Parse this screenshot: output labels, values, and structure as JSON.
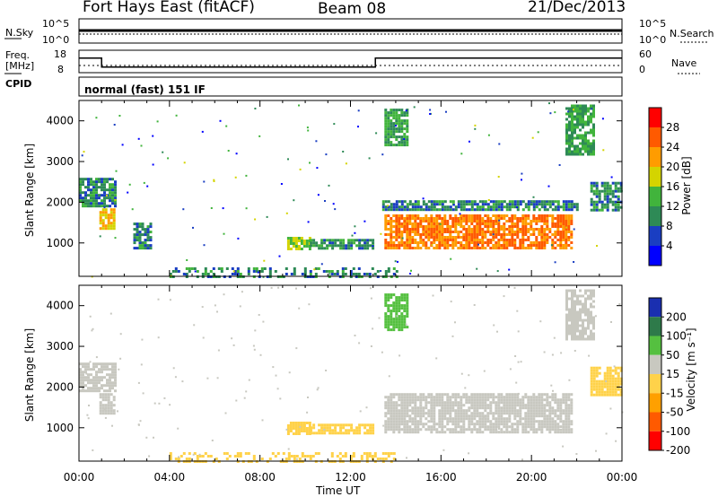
{
  "header": {
    "title": "Fort Hays East (fitACF)",
    "beam": "Beam 08",
    "date": "21/Dec/2013"
  },
  "top_panels": {
    "nsky_label": "N.Sky",
    "nsky_ticks": [
      "10^5",
      "10^0"
    ],
    "nsearch_label": "N.Search",
    "nsearch_ticks": [
      "10^5",
      "10^0"
    ],
    "freq_label": "Freq.",
    "freq_unit": "[MHz]",
    "freq_ticks": [
      "18",
      "8"
    ],
    "nave_label": "Nave",
    "nave_ticks": [
      "60",
      "0"
    ],
    "cpid_label": "CPID",
    "cpid_value": "normal (fast) 151 IF",
    "freq_profile": {
      "x_hours": [
        0,
        1.0,
        1.0,
        13.1,
        13.1,
        24
      ],
      "mhz": [
        14.5,
        14.5,
        10.5,
        10.5,
        14.5,
        14.5
      ]
    }
  },
  "chart_data": [
    {
      "type": "heatmap",
      "title": "",
      "xlabel": "Time UT",
      "ylabel": "Slant Range [km]",
      "xlim": [
        0,
        24
      ],
      "ylim": [
        180,
        4500
      ],
      "x_ticks": [
        "00:00",
        "04:00",
        "08:00",
        "12:00",
        "16:00",
        "20:00",
        "00:00"
      ],
      "y_ticks": [
        1000,
        2000,
        3000,
        4000
      ],
      "colorbar": {
        "label": "Power [dB]",
        "ticks": [
          "28",
          "24",
          "20",
          "16",
          "12",
          "8",
          "4"
        ],
        "colors": [
          "#ff0000",
          "#ff5a00",
          "#ff9c00",
          "#d4d400",
          "#41b43c",
          "#2e8a56",
          "#1a3ec2",
          "#0000ff"
        ]
      },
      "regions": [
        {
          "x": [
            0,
            1.6
          ],
          "y": [
            1900,
            2600
          ],
          "level": 8
        },
        {
          "x": [
            0.9,
            1.5
          ],
          "y": [
            1350,
            1850
          ],
          "level": 18
        },
        {
          "x": [
            2.4,
            3.2
          ],
          "y": [
            900,
            1500
          ],
          "level": 8
        },
        {
          "x": [
            9.2,
            10.2
          ],
          "y": [
            850,
            1150
          ],
          "level": 14
        },
        {
          "x": [
            10.2,
            13.0
          ],
          "y": [
            850,
            1100
          ],
          "level": 8
        },
        {
          "x": [
            13.4,
            22.0
          ],
          "y": [
            1800,
            2050
          ],
          "level": 8
        },
        {
          "x": [
            13.5,
            21.8
          ],
          "y": [
            900,
            1700
          ],
          "level": 22
        },
        {
          "x": [
            13.5,
            14.5
          ],
          "y": [
            3400,
            4300
          ],
          "level": 10
        },
        {
          "x": [
            21.5,
            22.7
          ],
          "y": [
            3200,
            4400
          ],
          "level": 10
        },
        {
          "x": [
            22.6,
            24.0
          ],
          "y": [
            1800,
            2500
          ],
          "level": 8
        },
        {
          "x": [
            4.0,
            14.0
          ],
          "y": [
            200,
            400
          ],
          "level": 8
        }
      ]
    },
    {
      "type": "heatmap",
      "title": "",
      "xlabel": "Time UT",
      "ylabel": "Slant Range [km]",
      "xlim": [
        0,
        24
      ],
      "ylim": [
        180,
        4500
      ],
      "x_ticks": [
        "00:00",
        "04:00",
        "08:00",
        "12:00",
        "16:00",
        "20:00",
        "00:00"
      ],
      "y_ticks": [
        1000,
        2000,
        3000,
        4000
      ],
      "colorbar": {
        "label": "Velocity [m s⁻¹]",
        "ticks": [
          "200",
          "100",
          "50",
          "15",
          "-15",
          "-50",
          "-100",
          "-200"
        ],
        "colors": [
          "#1a2fb0",
          "#2e7a4a",
          "#55c040",
          "#c8c8c0",
          "#ffd24a",
          "#ffa000",
          "#ff5a00",
          "#ff0000"
        ]
      },
      "regions": [
        {
          "x": [
            0,
            1.6
          ],
          "y": [
            1900,
            2600
          ],
          "level": 0
        },
        {
          "x": [
            0.9,
            1.5
          ],
          "y": [
            1350,
            1850
          ],
          "level": 0
        },
        {
          "x": [
            9.2,
            10.2
          ],
          "y": [
            850,
            1150
          ],
          "level": -30
        },
        {
          "x": [
            10.2,
            13.0
          ],
          "y": [
            850,
            1100
          ],
          "level": -30
        },
        {
          "x": [
            13.5,
            21.8
          ],
          "y": [
            900,
            1850
          ],
          "level": 0
        },
        {
          "x": [
            13.5,
            14.5
          ],
          "y": [
            3400,
            4300
          ],
          "level": 30
        },
        {
          "x": [
            21.5,
            22.7
          ],
          "y": [
            3200,
            4400
          ],
          "level": 0
        },
        {
          "x": [
            22.6,
            24.0
          ],
          "y": [
            1800,
            2500
          ],
          "level": -20
        },
        {
          "x": [
            4.0,
            14.0
          ],
          "y": [
            200,
            400
          ],
          "level": -40
        }
      ]
    }
  ]
}
